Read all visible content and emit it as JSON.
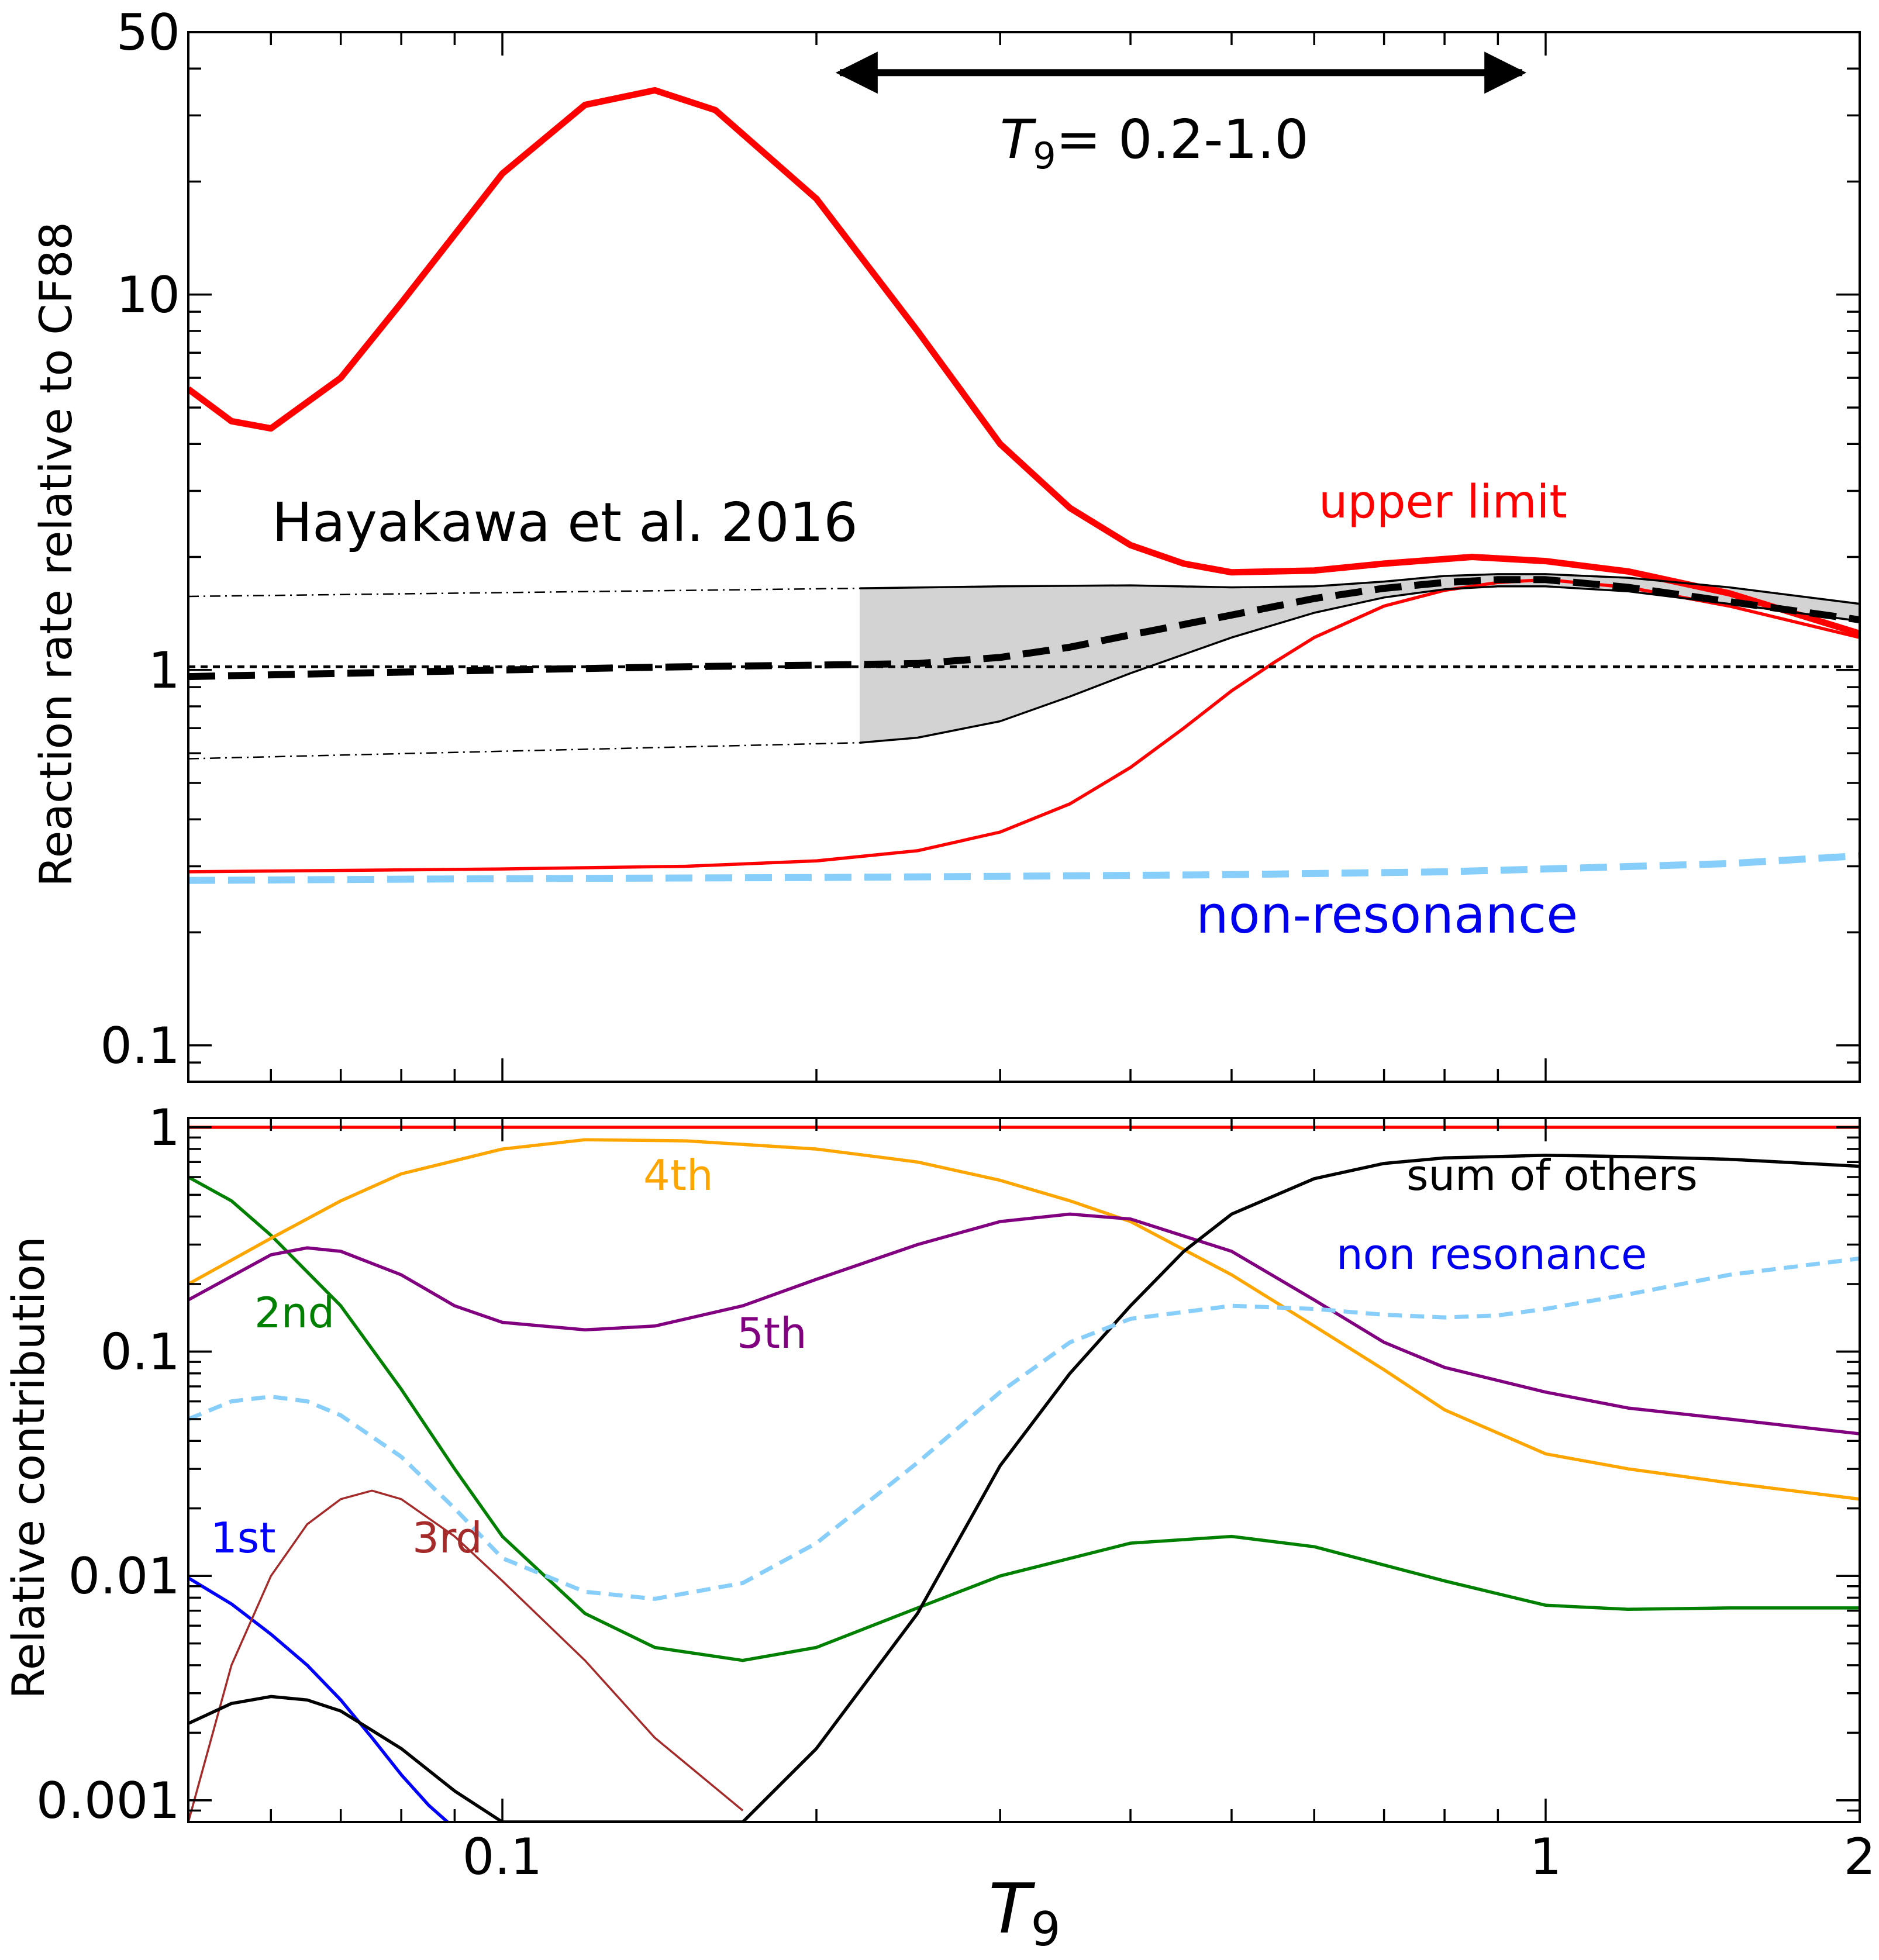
{
  "chart_data": [
    {
      "panel": "top",
      "type": "line",
      "ylabel": "Reaction rate relative to CF88",
      "yscale": "log",
      "xscale": "log",
      "xlim": [
        0.05,
        2.0
      ],
      "ylim": [
        0.08,
        50
      ],
      "ytick_labels": [
        "50",
        "10",
        "1",
        "0.1"
      ],
      "ytick_values": [
        50,
        10,
        1,
        0.1
      ],
      "grid": false,
      "annotations": {
        "range_arrow": {
          "from": 0.2,
          "to": 1.0,
          "y": 39
        },
        "range_label_symbol": "T",
        "range_label_subscript": "9",
        "range_label_value": "= 0.2-1.0",
        "reference_label": "Hayakawa et al. 2016",
        "upper_limit_label": "upper limit",
        "upper_limit_color": "#ff0000",
        "non_resonance_label": "non-resonance",
        "non_resonance_label_color": "#0000ee"
      },
      "series": [
        {
          "key": "upper",
          "color": "#ff0000",
          "style": "solid-thick",
          "x": [
            0.05,
            0.055,
            0.06,
            0.07,
            0.08,
            0.1,
            0.12,
            0.14,
            0.16,
            0.2,
            0.25,
            0.3,
            0.35,
            0.4,
            0.45,
            0.5,
            0.6,
            0.7,
            0.85,
            1.0,
            1.2,
            1.5,
            2.0
          ],
          "y": [
            5.6,
            4.6,
            4.4,
            6.0,
            9.5,
            21,
            32,
            35,
            31,
            18,
            8.0,
            4.0,
            2.7,
            2.15,
            1.92,
            1.82,
            1.84,
            1.92,
            2.0,
            1.95,
            1.83,
            1.6,
            1.25
          ]
        },
        {
          "key": "lower",
          "color": "#ff0000",
          "style": "solid",
          "x": [
            0.05,
            0.1,
            0.15,
            0.2,
            0.25,
            0.3,
            0.35,
            0.4,
            0.45,
            0.5,
            0.55,
            0.6,
            0.7,
            0.8,
            0.9,
            1.0,
            1.2,
            1.5,
            2.0
          ],
          "y": [
            0.29,
            0.295,
            0.3,
            0.31,
            0.33,
            0.37,
            0.44,
            0.55,
            0.7,
            0.88,
            1.05,
            1.22,
            1.48,
            1.63,
            1.71,
            1.74,
            1.66,
            1.48,
            1.22
          ]
        },
        {
          "key": "recommended",
          "color": "#000000",
          "style": "dashed-thick",
          "x": [
            0.05,
            0.1,
            0.15,
            0.2,
            0.25,
            0.3,
            0.35,
            0.4,
            0.5,
            0.6,
            0.7,
            0.8,
            0.9,
            1.0,
            1.2,
            1.5,
            2.0
          ],
          "y": [
            0.96,
            1.0,
            1.02,
            1.03,
            1.04,
            1.08,
            1.15,
            1.24,
            1.4,
            1.55,
            1.65,
            1.71,
            1.74,
            1.74,
            1.66,
            1.52,
            1.36
          ]
        },
        {
          "key": "band_upper",
          "color": "#000000",
          "style": "solid-thin",
          "x": [
            0.22,
            0.3,
            0.4,
            0.5,
            0.6,
            0.7,
            0.8,
            0.9,
            1.0,
            1.2,
            1.5,
            2.0
          ],
          "y": [
            1.65,
            1.67,
            1.68,
            1.66,
            1.67,
            1.72,
            1.78,
            1.8,
            1.8,
            1.76,
            1.66,
            1.5
          ]
        },
        {
          "key": "band_lower",
          "color": "#000000",
          "style": "solid-thin",
          "x": [
            0.22,
            0.25,
            0.3,
            0.35,
            0.4,
            0.5,
            0.6,
            0.7,
            0.8,
            0.9,
            1.0,
            1.2,
            1.5,
            2.0
          ],
          "y": [
            0.64,
            0.66,
            0.73,
            0.85,
            0.98,
            1.22,
            1.42,
            1.56,
            1.64,
            1.67,
            1.67,
            1.62,
            1.5,
            1.35
          ]
        },
        {
          "key": "band_upper_ext",
          "color": "#000000",
          "style": "dashdot-thin",
          "x": [
            0.05,
            0.22
          ],
          "y": [
            1.57,
            1.65
          ]
        },
        {
          "key": "band_lower_ext",
          "color": "#000000",
          "style": "dashdot-thin",
          "x": [
            0.05,
            0.22
          ],
          "y": [
            0.58,
            0.64
          ]
        },
        {
          "key": "unity",
          "color": "#000000",
          "style": "dotted",
          "x": [
            0.05,
            2.0
          ],
          "y": [
            1.02,
            1.02
          ]
        },
        {
          "key": "nonres",
          "color": "#87cefa",
          "style": "dashed-thick",
          "x": [
            0.05,
            0.1,
            0.2,
            0.3,
            0.5,
            0.8,
            1.0,
            1.5,
            2.0
          ],
          "y": [
            0.275,
            0.278,
            0.28,
            0.282,
            0.285,
            0.29,
            0.295,
            0.305,
            0.32
          ]
        }
      ],
      "band_fill_color": "#d3d3d3"
    },
    {
      "panel": "bottom",
      "type": "line",
      "xlabel_symbol": "T",
      "xlabel_subscript": "9",
      "ylabel": "Relative contribution",
      "yscale": "log",
      "xscale": "log",
      "xlim": [
        0.05,
        2.0
      ],
      "ylim": [
        0.0008,
        1.1
      ],
      "ytick_labels": [
        "1",
        "0.1",
        "0.01",
        "0.001"
      ],
      "ytick_values": [
        1,
        0.1,
        0.01,
        0.001
      ],
      "xtick_labels": [
        "0.1",
        "1",
        "2"
      ],
      "xtick_values": [
        0.1,
        1,
        2
      ],
      "grid": false,
      "series": [
        {
          "key": "total",
          "color": "#ff0000",
          "style": "solid",
          "x": [
            0.05,
            2.0
          ],
          "y": [
            1.0,
            1.0
          ]
        },
        {
          "key": "first",
          "name": "1st",
          "color": "#0000ff",
          "style": "solid",
          "x": [
            0.05,
            0.055,
            0.06,
            0.065,
            0.07,
            0.075,
            0.08,
            0.085,
            0.09
          ],
          "y": [
            0.0098,
            0.0075,
            0.0055,
            0.004,
            0.0028,
            0.0019,
            0.0013,
            0.00095,
            0.00075
          ]
        },
        {
          "key": "second",
          "name": "2nd",
          "color": "#008000",
          "style": "solid",
          "x": [
            0.05,
            0.055,
            0.06,
            0.07,
            0.08,
            0.09,
            0.1,
            0.12,
            0.14,
            0.17,
            0.2,
            0.25,
            0.3,
            0.4,
            0.5,
            0.6,
            0.8,
            1.0,
            1.2,
            1.5,
            2.0
          ],
          "y": [
            0.6,
            0.47,
            0.33,
            0.16,
            0.068,
            0.03,
            0.015,
            0.0068,
            0.0048,
            0.0042,
            0.0048,
            0.0072,
            0.01,
            0.014,
            0.015,
            0.0135,
            0.0095,
            0.0074,
            0.0071,
            0.0072,
            0.0072
          ]
        },
        {
          "key": "third",
          "name": "3rd",
          "color": "#a52a2a",
          "style": "solid-thin",
          "x": [
            0.05,
            0.055,
            0.06,
            0.065,
            0.07,
            0.075,
            0.08,
            0.09,
            0.1,
            0.12,
            0.14,
            0.17
          ],
          "y": [
            0.0008,
            0.004,
            0.01,
            0.017,
            0.022,
            0.024,
            0.022,
            0.015,
            0.0095,
            0.0042,
            0.0019,
            0.0009
          ]
        },
        {
          "key": "fourth",
          "name": "4th",
          "color": "#ffa500",
          "style": "solid",
          "x": [
            0.05,
            0.06,
            0.07,
            0.08,
            0.1,
            0.12,
            0.15,
            0.2,
            0.25,
            0.3,
            0.35,
            0.4,
            0.5,
            0.6,
            0.7,
            0.8,
            1.0,
            1.2,
            1.5,
            2.0
          ],
          "y": [
            0.2,
            0.32,
            0.47,
            0.62,
            0.8,
            0.88,
            0.87,
            0.8,
            0.7,
            0.58,
            0.47,
            0.38,
            0.22,
            0.13,
            0.083,
            0.055,
            0.035,
            0.03,
            0.026,
            0.022
          ]
        },
        {
          "key": "fifth",
          "name": "5th",
          "color": "#800080",
          "style": "solid",
          "x": [
            0.05,
            0.06,
            0.065,
            0.07,
            0.08,
            0.09,
            0.1,
            0.12,
            0.14,
            0.17,
            0.2,
            0.25,
            0.3,
            0.35,
            0.4,
            0.5,
            0.6,
            0.7,
            0.8,
            1.0,
            1.2,
            1.5,
            2.0
          ],
          "y": [
            0.17,
            0.27,
            0.29,
            0.28,
            0.22,
            0.16,
            0.135,
            0.125,
            0.13,
            0.16,
            0.21,
            0.3,
            0.38,
            0.41,
            0.39,
            0.28,
            0.17,
            0.11,
            0.085,
            0.066,
            0.056,
            0.05,
            0.043
          ]
        },
        {
          "key": "others",
          "name": "sum of others",
          "color": "#000000",
          "style": "solid",
          "x": [
            0.05,
            0.055,
            0.06,
            0.065,
            0.07,
            0.08,
            0.09,
            0.1,
            0.17,
            0.2,
            0.25,
            0.3,
            0.35,
            0.4,
            0.45,
            0.5,
            0.6,
            0.7,
            0.8,
            1.0,
            1.2,
            1.5,
            2.0
          ],
          "y": [
            0.0022,
            0.0027,
            0.0029,
            0.0028,
            0.0025,
            0.0017,
            0.0011,
            0.0008,
            0.0008,
            0.0017,
            0.0068,
            0.031,
            0.08,
            0.16,
            0.28,
            0.41,
            0.59,
            0.69,
            0.73,
            0.75,
            0.74,
            0.72,
            0.67
          ]
        },
        {
          "key": "nonres",
          "name": "non resonance",
          "color": "#87cefa",
          "style": "dashed",
          "x": [
            0.05,
            0.055,
            0.06,
            0.065,
            0.07,
            0.08,
            0.09,
            0.1,
            0.12,
            0.14,
            0.17,
            0.2,
            0.25,
            0.3,
            0.35,
            0.4,
            0.5,
            0.6,
            0.7,
            0.8,
            0.9,
            1.0,
            1.2,
            1.5,
            2.0
          ],
          "y": [
            0.05,
            0.06,
            0.063,
            0.06,
            0.052,
            0.034,
            0.02,
            0.012,
            0.0085,
            0.0079,
            0.0093,
            0.014,
            0.032,
            0.066,
            0.11,
            0.14,
            0.16,
            0.155,
            0.146,
            0.142,
            0.145,
            0.155,
            0.18,
            0.22,
            0.26
          ]
        }
      ],
      "labels": {
        "first": {
          "text": "1st",
          "color": "#0000ff"
        },
        "second": {
          "text": "2nd",
          "color": "#008000"
        },
        "third": {
          "text": "3rd",
          "color": "#a52a2a"
        },
        "fourth": {
          "text": "4th",
          "color": "#ffa500"
        },
        "fifth": {
          "text": "5th",
          "color": "#800080"
        },
        "others": {
          "text": "sum of others",
          "color": "#000000"
        },
        "nonres": {
          "text": "non resonance",
          "color": "#0000ee"
        }
      }
    }
  ]
}
